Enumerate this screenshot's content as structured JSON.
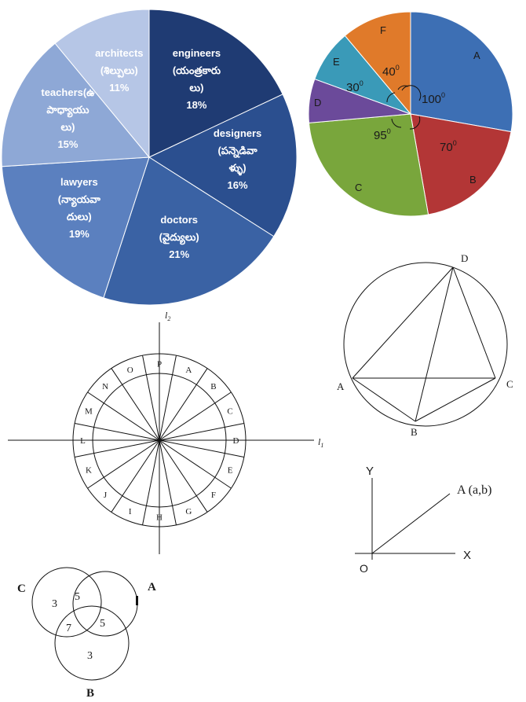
{
  "figures": {
    "pie_professions": {
      "slices": [
        {
          "label_en": "engineers",
          "label_te_1": "(యంత్రకారు",
          "label_te_2": "లు)",
          "percent": "18%",
          "value": 18,
          "color": "#1f3b73"
        },
        {
          "label_en": "designers",
          "label_te_1": "(పన్నెడివా",
          "label_te_2": "ళ్ళు)",
          "percent": "16%",
          "value": 16,
          "color": "#2b4f8f"
        },
        {
          "label_en": "doctors",
          "label_te_1": "(వైద్యులు)",
          "label_te_2": "",
          "percent": "21%",
          "value": 21,
          "color": "#3a62a4"
        },
        {
          "label_en": "lawyers",
          "label_te_1": "(న్యాయవా",
          "label_te_2": "దులు)",
          "percent": "19%",
          "value": 19,
          "color": "#5b80bf"
        },
        {
          "label_en": "teachers(ఉ",
          "label_te_1": "పాధ్యాయు",
          "label_te_2": "లు)",
          "percent": "15%",
          "value": 15,
          "color": "#8ea8d6"
        },
        {
          "label_en": "architects",
          "label_te_1": "(శిల్పులు)",
          "label_te_2": "",
          "percent": "11%",
          "value": 11,
          "color": "#b6c6e6"
        }
      ]
    },
    "pie_angles": {
      "slices": [
        {
          "letter": "A",
          "degrees": 100,
          "color": "#3d6fb4"
        },
        {
          "letter": "B",
          "degrees": 70,
          "color": "#b33636"
        },
        {
          "letter": "C",
          "degrees": 95,
          "color": "#79a63c"
        },
        {
          "letter": "D",
          "degrees": 25,
          "color": "#6b4a9a"
        },
        {
          "letter": "E",
          "degrees": 30,
          "color": "#3a9ab8"
        },
        {
          "letter": "F",
          "degrees": 40,
          "color": "#e07a2a"
        }
      ],
      "angle_labels": {
        "a": "100",
        "b": "70",
        "c": "95",
        "e": "30",
        "f": "40",
        "degree_mark": "0"
      }
    },
    "circle_triangle": {
      "D": "D",
      "A": "A",
      "C": "C",
      "B": "B"
    },
    "dial": {
      "letters": [
        "A",
        "B",
        "C",
        "D",
        "E",
        "F",
        "G",
        "H",
        "I",
        "J",
        "K",
        "L",
        "M",
        "N",
        "O",
        "P"
      ],
      "axis_x": "l",
      "axis_x_sub": "1",
      "axis_y": "l",
      "axis_y_sub": "2"
    },
    "coordinate": {
      "y_label": "Y",
      "x_label": "X",
      "origin": "O",
      "point": "A (a,b)"
    },
    "venn": {
      "set_c": "C",
      "set_a": "A",
      "set_b": "B",
      "c_only": "3",
      "ca": "5",
      "cb": "7",
      "ab": "5",
      "b_only": "3"
    }
  }
}
